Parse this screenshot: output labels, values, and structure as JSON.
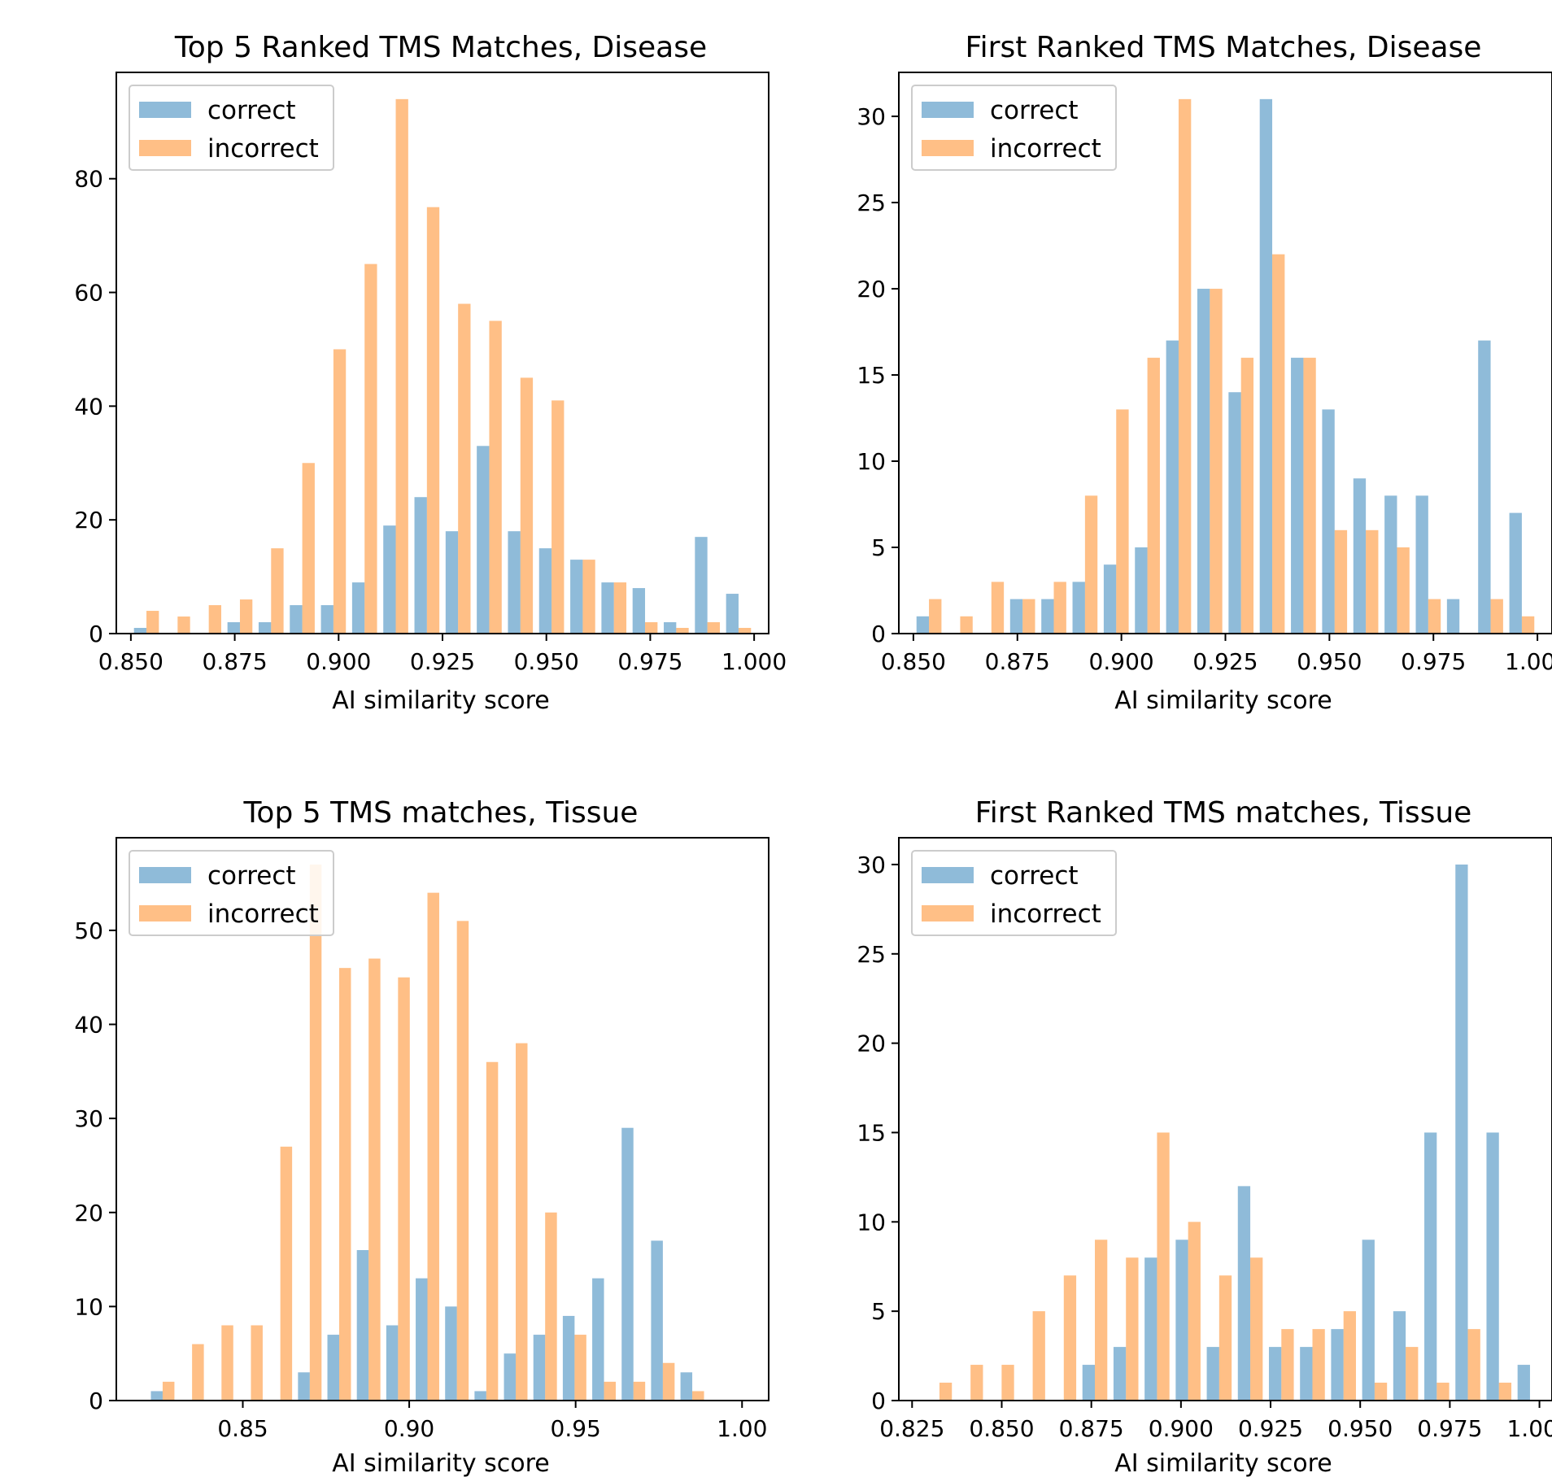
{
  "chart_data": [
    {
      "type": "bar",
      "title": "Top 5 Ranked TMS Matches, Disease",
      "xlabel": "AI similarity score",
      "ylabel": "",
      "xlim": [
        0.8465,
        1.0035
      ],
      "ylim": [
        0,
        94
      ],
      "xticks": [
        0.85,
        0.875,
        0.9,
        0.925,
        0.95,
        0.975,
        1.0
      ],
      "xtick_labels": [
        "0.850",
        "0.875",
        "0.900",
        "0.925",
        "0.950",
        "0.975",
        "1.000"
      ],
      "yticks": [
        0,
        20,
        40,
        60,
        80
      ],
      "bin_start": 0.85,
      "bin_width": 0.0075,
      "legend": {
        "position": "upper-left",
        "entries": [
          "correct",
          "incorrect"
        ]
      },
      "series": [
        {
          "name": "correct",
          "color": "#1f77b4",
          "values": [
            1,
            0,
            0,
            2,
            2,
            5,
            5,
            9,
            19,
            24,
            18,
            33,
            18,
            15,
            13,
            9,
            8,
            2,
            17,
            7
          ]
        },
        {
          "name": "incorrect",
          "color": "#ff7f0e",
          "values": [
            4,
            3,
            5,
            6,
            15,
            30,
            50,
            65,
            94,
            75,
            58,
            55,
            45,
            41,
            13,
            9,
            2,
            1,
            2,
            1
          ]
        }
      ]
    },
    {
      "type": "bar",
      "title": "First Ranked TMS Matches, Disease",
      "xlabel": "AI similarity score",
      "ylabel": "",
      "xlim": [
        0.8465,
        1.0035
      ],
      "ylim": [
        0,
        31
      ],
      "xticks": [
        0.85,
        0.875,
        0.9,
        0.925,
        0.95,
        0.975,
        1.0
      ],
      "xtick_labels": [
        "0.850",
        "0.875",
        "0.900",
        "0.925",
        "0.950",
        "0.975",
        "1.000"
      ],
      "yticks": [
        0,
        5,
        10,
        15,
        20,
        25,
        30
      ],
      "bin_start": 0.85,
      "bin_width": 0.0075,
      "legend": {
        "position": "upper-left",
        "entries": [
          "correct",
          "incorrect"
        ]
      },
      "series": [
        {
          "name": "correct",
          "color": "#1f77b4",
          "values": [
            1,
            0,
            0,
            2,
            2,
            3,
            4,
            5,
            17,
            20,
            14,
            31,
            16,
            13,
            9,
            8,
            8,
            2,
            17,
            7
          ]
        },
        {
          "name": "incorrect",
          "color": "#ff7f0e",
          "values": [
            2,
            1,
            3,
            2,
            3,
            8,
            13,
            16,
            31,
            20,
            16,
            22,
            16,
            6,
            6,
            5,
            2,
            0,
            2,
            1
          ]
        }
      ]
    },
    {
      "type": "bar",
      "title": "Top 5 TMS matches, Tissue",
      "xlabel": "AI similarity score",
      "ylabel": "",
      "xlim": [
        0.812,
        1.008
      ],
      "ylim": [
        0,
        57
      ],
      "xticks": [
        0.85,
        0.9,
        0.95,
        1.0
      ],
      "xtick_labels": [
        "0.85",
        "0.90",
        "0.95",
        "1.00"
      ],
      "yticks": [
        0,
        10,
        20,
        30,
        40,
        50
      ],
      "bin_start": 0.8215,
      "bin_width": 0.00884,
      "legend": {
        "position": "upper-left",
        "entries": [
          "correct",
          "incorrect"
        ]
      },
      "series": [
        {
          "name": "correct",
          "color": "#1f77b4",
          "values": [
            1,
            0,
            0,
            0,
            0,
            3,
            7,
            16,
            8,
            13,
            10,
            1,
            5,
            7,
            9,
            13,
            29,
            17,
            3,
            0
          ]
        },
        {
          "name": "incorrect",
          "color": "#ff7f0e",
          "values": [
            2,
            6,
            8,
            8,
            27,
            57,
            46,
            47,
            45,
            54,
            51,
            36,
            38,
            20,
            7,
            2,
            2,
            4,
            1,
            0
          ]
        }
      ]
    },
    {
      "type": "bar",
      "title": "First Ranked TMS matches, Tissue",
      "xlabel": "AI similarity score",
      "ylabel": "",
      "xlim": [
        0.8213,
        1.0035
      ],
      "ylim": [
        0,
        30
      ],
      "xticks": [
        0.825,
        0.85,
        0.875,
        0.9,
        0.925,
        0.95,
        0.975,
        1.0
      ],
      "xtick_labels": [
        "0.825",
        "0.850",
        "0.875",
        "0.900",
        "0.925",
        "0.950",
        "0.975",
        "1.000"
      ],
      "yticks": [
        0,
        5,
        10,
        15,
        20,
        25,
        30
      ],
      "bin_start": 0.8283,
      "bin_width": 0.00867,
      "legend": {
        "position": "upper-left",
        "entries": [
          "correct",
          "incorrect"
        ]
      },
      "series": [
        {
          "name": "correct",
          "color": "#1f77b4",
          "values": [
            0,
            0,
            0,
            0,
            0,
            2,
            3,
            8,
            9,
            3,
            12,
            3,
            3,
            4,
            9,
            5,
            15,
            30,
            15,
            2
          ]
        },
        {
          "name": "incorrect",
          "color": "#ff7f0e",
          "values": [
            1,
            2,
            2,
            5,
            7,
            9,
            8,
            15,
            10,
            7,
            8,
            4,
            4,
            5,
            1,
            3,
            1,
            4,
            1,
            0
          ]
        }
      ]
    }
  ]
}
